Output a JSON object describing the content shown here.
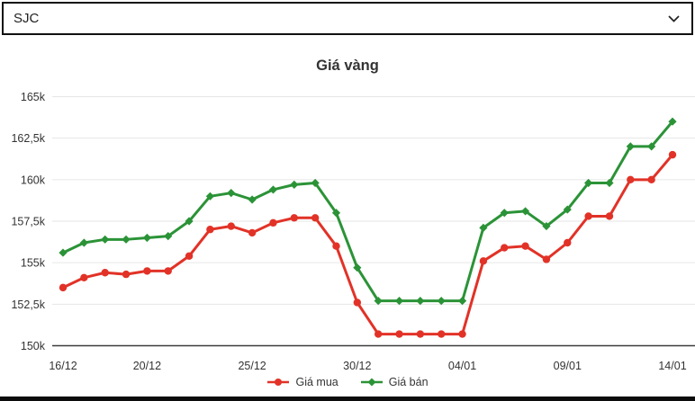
{
  "dropdown": {
    "value": "SJC"
  },
  "chart_data": {
    "type": "line",
    "title": "Giá vàng",
    "x": [
      "16/12",
      "17/12",
      "18/12",
      "19/12",
      "20/12",
      "21/12",
      "22/12",
      "23/12",
      "24/12",
      "25/12",
      "26/12",
      "27/12",
      "28/12",
      "29/12",
      "30/12",
      "31/12",
      "01/01",
      "02/01",
      "03/01",
      "04/01",
      "05/01",
      "06/01",
      "07/01",
      "08/01",
      "09/01",
      "10/01",
      "11/01",
      "12/01",
      "13/01",
      "14/01"
    ],
    "xtick_indices": [
      0,
      4,
      9,
      14,
      19,
      24,
      29
    ],
    "xtick_labels": [
      "16/12",
      "20/12",
      "25/12",
      "30/12",
      "04/01",
      "09/01",
      "14/01"
    ],
    "ylim": [
      150,
      165
    ],
    "ytick_values": [
      150,
      152.5,
      155,
      157.5,
      160,
      162.5,
      165
    ],
    "ytick_labels": [
      "150k",
      "152,5k",
      "155k",
      "157,5k",
      "160k",
      "162,5k",
      "165k"
    ],
    "grid": "horizontal",
    "legend_position": "bottom",
    "series": [
      {
        "name": "Giá mua",
        "color": "#e23227",
        "marker": "circle",
        "values": [
          153.5,
          154.1,
          154.4,
          154.3,
          154.5,
          154.5,
          155.4,
          157.0,
          157.2,
          156.8,
          157.4,
          157.7,
          157.7,
          156.0,
          152.6,
          150.7,
          150.7,
          150.7,
          150.7,
          150.7,
          155.1,
          155.9,
          156.0,
          155.2,
          156.2,
          157.8,
          157.8,
          160.0,
          160.0,
          161.5
        ]
      },
      {
        "name": "Giá bán",
        "color": "#2b9337",
        "marker": "diamond",
        "values": [
          155.6,
          156.2,
          156.4,
          156.4,
          156.5,
          156.6,
          157.5,
          159.0,
          159.2,
          158.8,
          159.4,
          159.7,
          159.8,
          158.0,
          154.7,
          152.7,
          152.7,
          152.7,
          152.7,
          152.7,
          157.1,
          158.0,
          158.1,
          157.2,
          158.2,
          159.8,
          159.8,
          162.0,
          162.0,
          163.5
        ]
      }
    ],
    "colors": {
      "axis": "#3c3c3c",
      "grid": "#e6e6e6",
      "labels": "#333333",
      "title": "#333333"
    }
  }
}
